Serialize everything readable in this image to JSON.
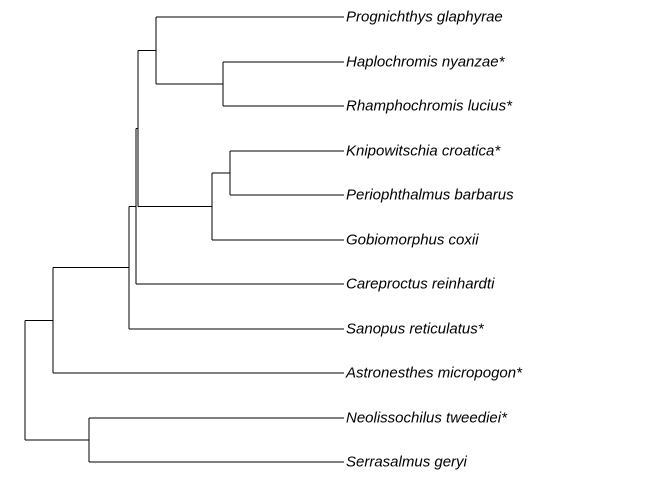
{
  "tree": {
    "type": "phylogram",
    "line_color": "#000000",
    "tips": [
      "Prognichthys glaphyrae",
      "Haplochromis nyanzae*",
      "Rhamphochromis lucius*",
      "Knipowitschia croatica*",
      "Periophthalmus barbarus",
      "Gobiomorphus coxii",
      "Careproctus reinhardti",
      "Sanopus reticulatus*",
      "Astronesthes micropogon*",
      "Neolissochilus tweediei*",
      "Serrasalmus geryi"
    ]
  }
}
